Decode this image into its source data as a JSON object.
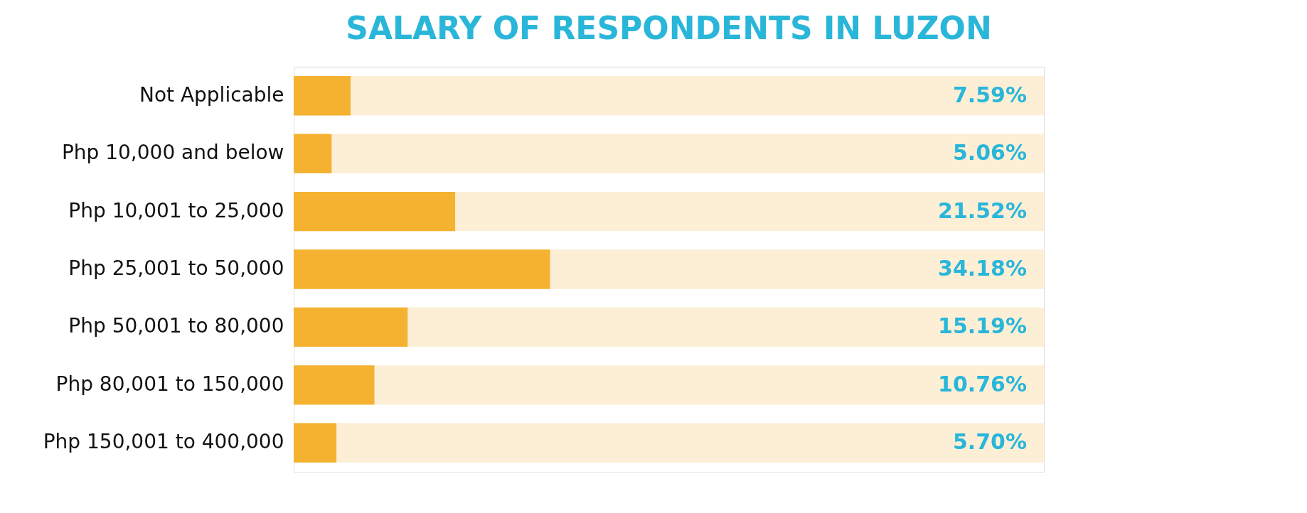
{
  "chart_data": {
    "type": "bar",
    "orientation": "horizontal",
    "title": "SALARY OF RESPONDENTS IN LUZON",
    "categories": [
      "Not Applicable",
      "Php 10,000 and below",
      "Php 10,001 to 25,000",
      "Php 25,001 to 50,000",
      "Php 50,001 to 80,000",
      "Php 80,001 to 150,000",
      "Php 150,001 to 400,000"
    ],
    "values": [
      7.59,
      5.06,
      21.52,
      34.18,
      15.19,
      10.76,
      5.7
    ],
    "value_labels": [
      "7.59%",
      "5.06%",
      "21.52%",
      "34.18%",
      "15.19%",
      "10.76%",
      "5.70%"
    ],
    "color": "#f5b230",
    "xlim": [
      0,
      100
    ]
  }
}
